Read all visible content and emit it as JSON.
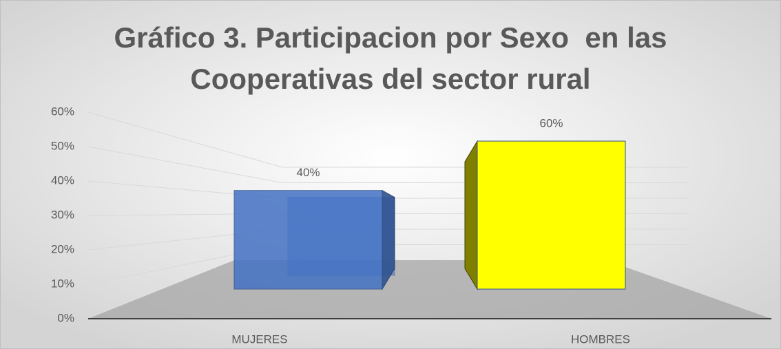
{
  "chart_data": {
    "type": "bar3d",
    "title": [
      "Gráfico 3. Participacion por Sexo  en las",
      "Cooperativas del sector rural"
    ],
    "categories": [
      "MUJERES",
      "HOMBRES"
    ],
    "values": [
      40,
      60
    ],
    "value_labels": [
      "40%",
      "60%"
    ],
    "colors": [
      "#4472c4",
      "#ffff00"
    ],
    "ylim": [
      0,
      60
    ],
    "yticks": [
      {
        "value": 0,
        "label": "0%"
      },
      {
        "value": 10,
        "label": "10%"
      },
      {
        "value": 20,
        "label": "20%"
      },
      {
        "value": 30,
        "label": "30%"
      },
      {
        "value": 40,
        "label": "40%"
      },
      {
        "value": 50,
        "label": "50%"
      },
      {
        "value": 60,
        "label": "60%"
      }
    ],
    "grid": true
  }
}
